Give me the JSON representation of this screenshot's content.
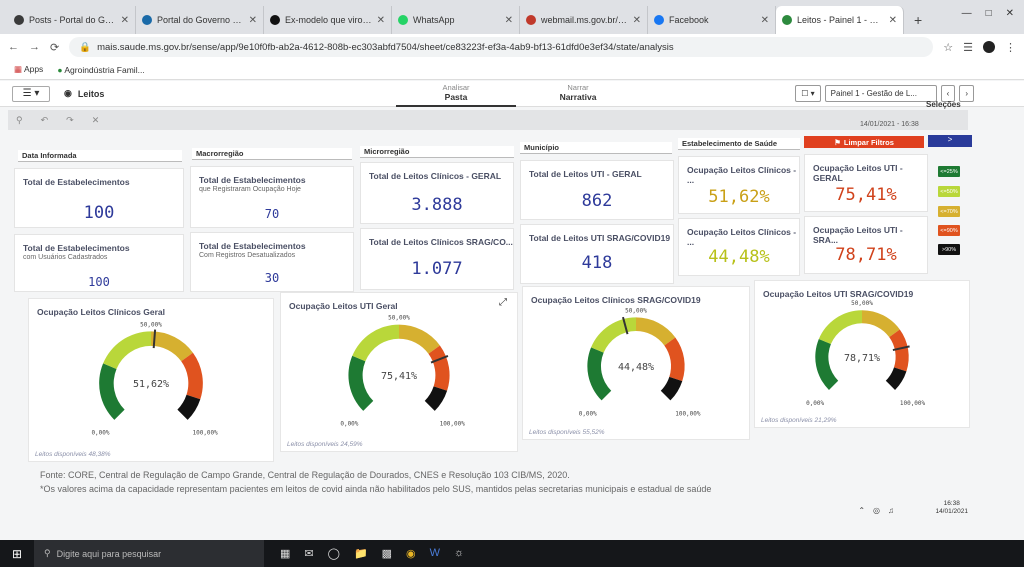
{
  "browser": {
    "tabs": [
      {
        "title": "Posts - Portal do Governo",
        "color": "#3a3a3a",
        "active": false
      },
      {
        "title": "Portal do Governo de M...",
        "color": "#1a6aa8",
        "active": false
      },
      {
        "title": "Ex-modelo que virou mu...",
        "color": "#111111",
        "active": false
      },
      {
        "title": "WhatsApp",
        "color": "#25d366",
        "active": false
      },
      {
        "title": "webmail.ms.gov.br/mail/...",
        "color": "#c0392b",
        "active": false
      },
      {
        "title": "Facebook",
        "color": "#1877f2",
        "active": false
      },
      {
        "title": "Leitos - Painel 1 - Gestão",
        "color": "#2d8a3e",
        "active": true
      }
    ],
    "new_tab": "+",
    "url": "mais.saude.ms.gov.br/sense/app/9e10f0fb-ab2a-4612-808b-ec303abfd7504/sheet/ce83223f-ef3a-4ab9-bf13-61dfd0e3ef34/state/analysis",
    "bookmarks": [
      "Apps",
      "Agroindústria Famil..."
    ]
  },
  "qlik": {
    "app_name": "Leitos",
    "mode_analisar_top": "Analisar",
    "mode_analisar": "Pasta",
    "mode_narrar_top": "Narrar",
    "mode_narrar": "Narrativa",
    "sheet_name": "Painel 1 - Gestão de L...",
    "selecoes": "Seleções",
    "date": "14/01/2021 - 16:38"
  },
  "filters": {
    "data_informada": "Data Informada",
    "macrorregiao": "Macrorregião",
    "microrregiao": "Microrregião",
    "municipio": "Município",
    "estabelecimento": "Estabelecimento de Saúde",
    "limpar": "Limpar Filtros",
    "arrow": ">"
  },
  "kpis": {
    "k1": {
      "title": "Total de Estabelecimentos",
      "sub": "",
      "value": "100"
    },
    "k2": {
      "title": "Total de Estabelecimentos",
      "sub": "com Usuários Cadastrados",
      "value": "100"
    },
    "k3": {
      "title": "Total de Estabelecimentos",
      "sub": "que Registraram Ocupação Hoje",
      "value": "70"
    },
    "k4": {
      "title": "Total de Estabelecimentos",
      "sub": "Com Registros Desatualizados",
      "value": "30"
    },
    "k5": {
      "title": "Total de Leitos Clínicos - GERAL",
      "value": "3.888"
    },
    "k6": {
      "title": "Total de Leitos Clínicos SRAG/CO...",
      "value": "1.077"
    },
    "k7": {
      "title": "Total de Leitos UTI - GERAL",
      "value": "862"
    },
    "k8": {
      "title": "Total de Leitos UTI SRAG/COVID19",
      "value": "418"
    },
    "k9": {
      "title": "Ocupação Leitos Clínicos - ...",
      "value": "51,62%",
      "color": "#c9a017"
    },
    "k10": {
      "title": "Ocupação Leitos UTI - GERAL",
      "value": "75,41%",
      "color": "#d0421b"
    },
    "k11": {
      "title": "Ocupação Leitos Clínicos - ...",
      "value": "44,48%",
      "color": "#b8c11a"
    },
    "k12": {
      "title": "Ocupação Leitos UTI - SRA...",
      "value": "78,71%",
      "color": "#d0421b"
    }
  },
  "legend": [
    {
      "label": "<=25%",
      "color": "#1e7a33"
    },
    {
      "label": "<=50%",
      "color": "#b9d73a"
    },
    {
      "label": "<=70%",
      "color": "#d6b030"
    },
    {
      "label": "<=90%",
      "color": "#e0531f"
    },
    {
      "label": ">90%",
      "color": "#111111"
    }
  ],
  "gauges": [
    {
      "title": "Ocupação Leitos Clínicos Geral",
      "value": 51.62,
      "label": "51,62%",
      "mid": "50,00%",
      "min": "0,00%",
      "max": "100,00%",
      "disp": "Leitos disponíveis 48,38%"
    },
    {
      "title": "Ocupação Leitos UTI Geral",
      "value": 75.41,
      "label": "75,41%",
      "mid": "50,00%",
      "min": "0,00%",
      "max": "100,00%",
      "disp": "Leitos disponíveis 24,59%"
    },
    {
      "title": "Ocupação Leitos Clínicos SRAG/COVID19",
      "value": 44.48,
      "label": "44,48%",
      "mid": "50,00%",
      "min": "0,00%",
      "max": "100,00%",
      "disp": "Leitos disponíveis 55,52%"
    },
    {
      "title": "Ocupação Leitos UTI SRAG/COVID19",
      "value": 78.71,
      "label": "78,71%",
      "mid": "50,00%",
      "min": "0,00%",
      "max": "100,00%",
      "disp": "Leitos disponíveis 21,29%"
    }
  ],
  "footer": {
    "line1": "Fonte: CORE, Central de Regulação de Campo Grande, Central de Regulação de Dourados, CNES e Resolução 103 CIB/MS, 2020.",
    "line2": "*Os valores acima da capacidade representam pacientes em leitos de covid ainda não habilitados pelo SUS, mantidos pelas secretarias municipais e estadual de saúde"
  },
  "taskbar": {
    "search_placeholder": "Digite aqui para pesquisar",
    "time": "16:38",
    "date": "14/01/2021"
  }
}
